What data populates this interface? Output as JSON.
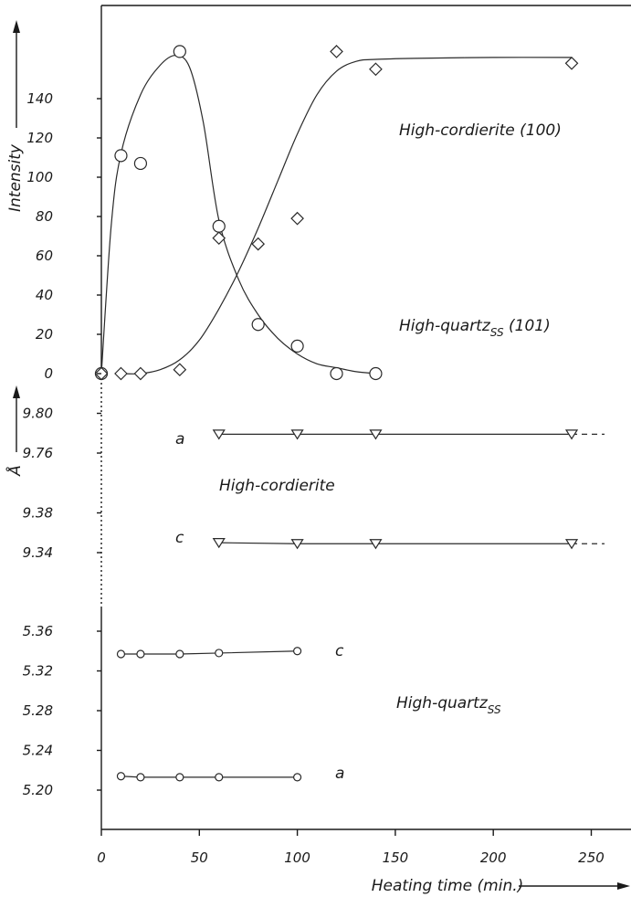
{
  "chart_data": {
    "type": "scatter",
    "x_label": "Heating time (min.)",
    "x_ticks": [
      0,
      50,
      100,
      150,
      200,
      250
    ],
    "xlim": [
      0,
      270
    ],
    "panels": [
      {
        "id": "intensity",
        "y_label": "Intensity",
        "y_ticks": [
          0,
          20,
          40,
          60,
          80,
          100,
          120,
          140
        ],
        "ylim": [
          0,
          186
        ],
        "series": [
          {
            "name": "High-quartz",
            "subscript": "SS",
            "suffix": " (101)",
            "marker": "circle",
            "x": [
              0,
              10,
              20,
              40,
              60,
              80,
              100,
              120,
              140
            ],
            "y": [
              0,
              111,
              107,
              164,
              75,
              25,
              14,
              0,
              0
            ],
            "curve_x": [
              0,
              5,
              10,
              20,
              30,
              38,
              45,
              52,
              60,
              70,
              80,
              90,
              100,
              110,
              120,
              130,
              140
            ],
            "curve_y": [
              0,
              75,
              112,
              142,
              157,
              162,
              156,
              128,
              78,
              48,
              30,
              18,
              10,
              5,
              3,
              1,
              0
            ]
          },
          {
            "name": "High-cordierite",
            "subscript": "",
            "suffix": " (100)",
            "marker": "diamond",
            "x": [
              0,
              10,
              20,
              40,
              60,
              80,
              100,
              120,
              140,
              240
            ],
            "y": [
              0,
              0,
              0,
              2,
              69,
              66,
              79,
              164,
              155,
              158
            ],
            "curve_x": [
              10,
              20,
              30,
              40,
              50,
              60,
              70,
              80,
              90,
              100,
              110,
              120,
              130,
              140,
              160,
              200,
              240
            ],
            "curve_y": [
              0,
              0,
              2,
              7,
              17,
              33,
              52,
              74,
              98,
              122,
              142,
              154,
              159,
              160,
              160.5,
              161,
              161
            ]
          }
        ]
      },
      {
        "id": "cordierite-lattice",
        "y_label": "Å",
        "y_ticks": [
          9.76,
          9.8
        ],
        "ylim": [
          9.74,
          9.82
        ],
        "series": [
          {
            "name": "a",
            "marker": "triangle-down",
            "x": [
              60,
              100,
              140,
              240
            ],
            "y": [
              9.779,
              9.779,
              9.779,
              9.779
            ]
          }
        ]
      },
      {
        "id": "cordierite-lattice-c",
        "y_ticks": [
          9.34,
          9.38
        ],
        "ylim": [
          9.32,
          9.4
        ],
        "series": [
          {
            "name": "c",
            "marker": "triangle-down",
            "x": [
              60,
              100,
              140,
              240
            ],
            "y": [
              9.35,
              9.349,
              9.349,
              9.349
            ]
          }
        ]
      },
      {
        "id": "quartz-lattice",
        "y_ticks": [
          5.2,
          5.24,
          5.28,
          5.32,
          5.36
        ],
        "ylim": [
          5.18,
          5.4
        ],
        "series": [
          {
            "name": "c",
            "marker": "circle-small",
            "x": [
              10,
              20,
              40,
              60,
              100
            ],
            "y": [
              5.337,
              5.337,
              5.337,
              5.338,
              5.34
            ]
          },
          {
            "name": "a",
            "marker": "circle-small",
            "x": [
              10,
              20,
              40,
              60,
              100
            ],
            "y": [
              5.214,
              5.213,
              5.213,
              5.213,
              5.213
            ]
          }
        ]
      }
    ],
    "annotations": {
      "high_cordierite": "High-cordierite",
      "high_quartz": "High-quartz",
      "ss": "SS"
    }
  }
}
